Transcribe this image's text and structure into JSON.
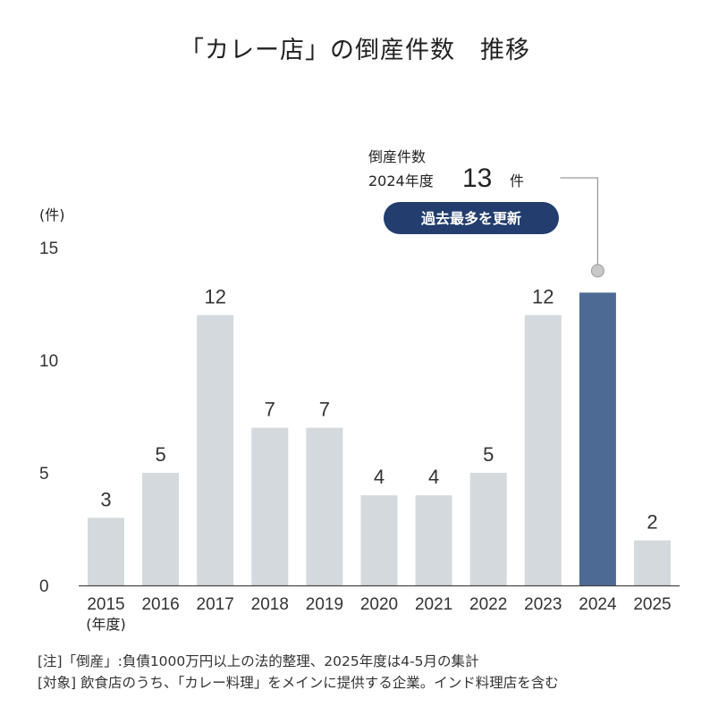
{
  "chart_data": {
    "type": "bar",
    "title": "「カレー店」の倒産件数　推移",
    "categories": [
      "2015",
      "2016",
      "2017",
      "2018",
      "2019",
      "2020",
      "2021",
      "2022",
      "2023",
      "2024",
      "2025"
    ],
    "values": [
      3,
      5,
      12,
      7,
      7,
      4,
      4,
      5,
      12,
      13,
      2
    ],
    "highlight_category": "2024",
    "xlabel": "(年度)",
    "ylabel": "(件)",
    "ylim": [
      0,
      15
    ],
    "yticks": [
      0,
      5,
      10,
      15
    ],
    "grid": false,
    "colors": {
      "bar": "#d3d9dd",
      "highlight": "#4c6a94",
      "badge": "#223d6e",
      "leader": "#9a9a9a",
      "dot": "#c8c8c8"
    },
    "annotation": {
      "line1": "倒産件数",
      "year_label": "2024年度",
      "value": "13",
      "unit": "件",
      "badge": "過去最多を更新"
    }
  },
  "notes": [
    "[注]「倒産」:負債1000万円以上の法的整理、2025年度は4-5月の集計",
    "[対象] 飲食店のうち、「カレー料理」をメインに提供する企業。インド料理店を含む"
  ]
}
